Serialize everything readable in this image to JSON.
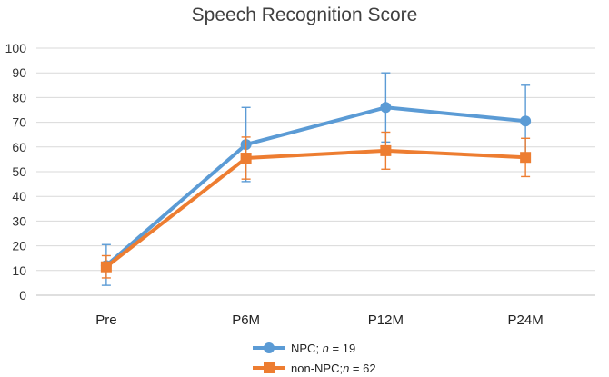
{
  "chart_data": {
    "type": "line",
    "title": "Speech Recognition Score",
    "xlabel": "",
    "ylabel": "",
    "categories": [
      "Pre",
      "P6M",
      "P12M",
      "P24M"
    ],
    "y_ticks": [
      "0",
      "10",
      "20",
      "30",
      "40",
      "50",
      "60",
      "70",
      "80",
      "90",
      "100"
    ],
    "ylim": [
      0,
      100
    ],
    "grid": true,
    "legend_position": "bottom",
    "series": [
      {
        "name": "NPC; n = 19",
        "legend_prefix": "NPC; ",
        "legend_n": "n",
        "legend_suffix": " = 19",
        "color": "#5B9BD5",
        "marker": "circle",
        "values": [
          12,
          61,
          76,
          70.5
        ],
        "error_low": [
          4,
          46,
          62,
          56
        ],
        "error_high": [
          20.5,
          76,
          90,
          85
        ]
      },
      {
        "name": "non-NPC; n = 62",
        "legend_prefix": "non-NPC;",
        "legend_n": "n",
        "legend_suffix": " = 62",
        "color": "#ED7D31",
        "marker": "square",
        "values": [
          11.5,
          55.5,
          58.5,
          55.8
        ],
        "error_low": [
          7,
          47,
          51,
          48
        ],
        "error_high": [
          16,
          64,
          66,
          63.5
        ]
      }
    ]
  }
}
